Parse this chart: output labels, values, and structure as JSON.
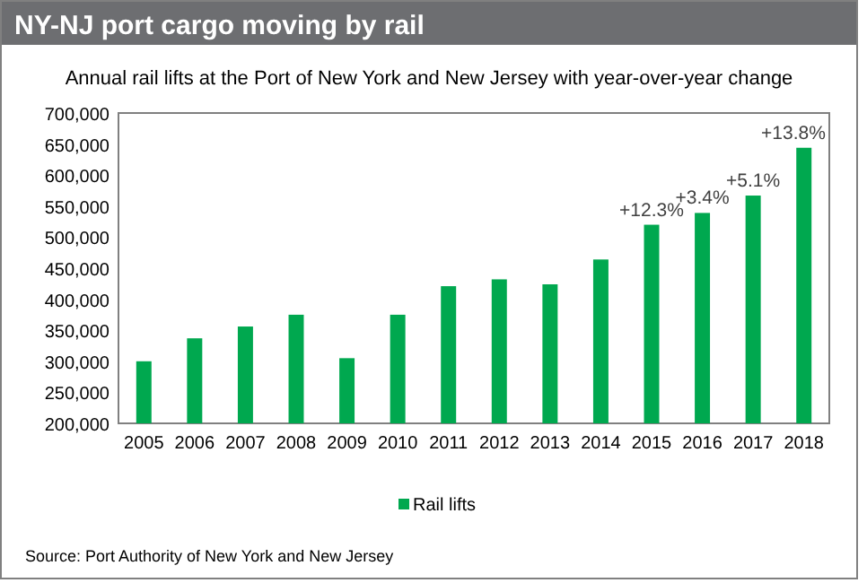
{
  "chart_data": {
    "type": "bar",
    "title": "NY-NJ port cargo moving by rail",
    "subtitle": "Annual rail lifts at the Port of New York and New Jersey with year-over-year change",
    "categories": [
      "2005",
      "2006",
      "2007",
      "2008",
      "2009",
      "2010",
      "2011",
      "2012",
      "2013",
      "2014",
      "2015",
      "2016",
      "2017",
      "2018"
    ],
    "series": [
      {
        "name": "Rail lifts",
        "color": "#00a84f",
        "values": [
          300000,
          337000,
          356000,
          375000,
          305000,
          375000,
          421000,
          432000,
          424000,
          464000,
          520000,
          539000,
          567000,
          644000
        ]
      }
    ],
    "ylim": [
      200000,
      700000
    ],
    "yticks": [
      {
        "value": 200000,
        "label": "200,000"
      },
      {
        "value": 250000,
        "label": "250,000"
      },
      {
        "value": 300000,
        "label": "300,000"
      },
      {
        "value": 350000,
        "label": "350,000"
      },
      {
        "value": 400000,
        "label": "400,000"
      },
      {
        "value": 450000,
        "label": "450,000"
      },
      {
        "value": 500000,
        "label": "500,000"
      },
      {
        "value": 550000,
        "label": "550,000"
      },
      {
        "value": 600000,
        "label": "600,000"
      },
      {
        "value": 650000,
        "label": "650,000"
      },
      {
        "value": 700000,
        "label": "700,000"
      }
    ],
    "grid": false,
    "legend": "bottom",
    "annotations": [
      {
        "text": "+12.3%",
        "x": "2015",
        "y": 520000
      },
      {
        "text": "+3.4%",
        "x": "2016",
        "y": 539000
      },
      {
        "text": "+5.1%",
        "x": "2017",
        "y": 567000
      },
      {
        "text": "+13.8%",
        "x": "2018",
        "y": 644000
      },
      "Source: Port Authority of New York and New Jersey"
    ]
  }
}
